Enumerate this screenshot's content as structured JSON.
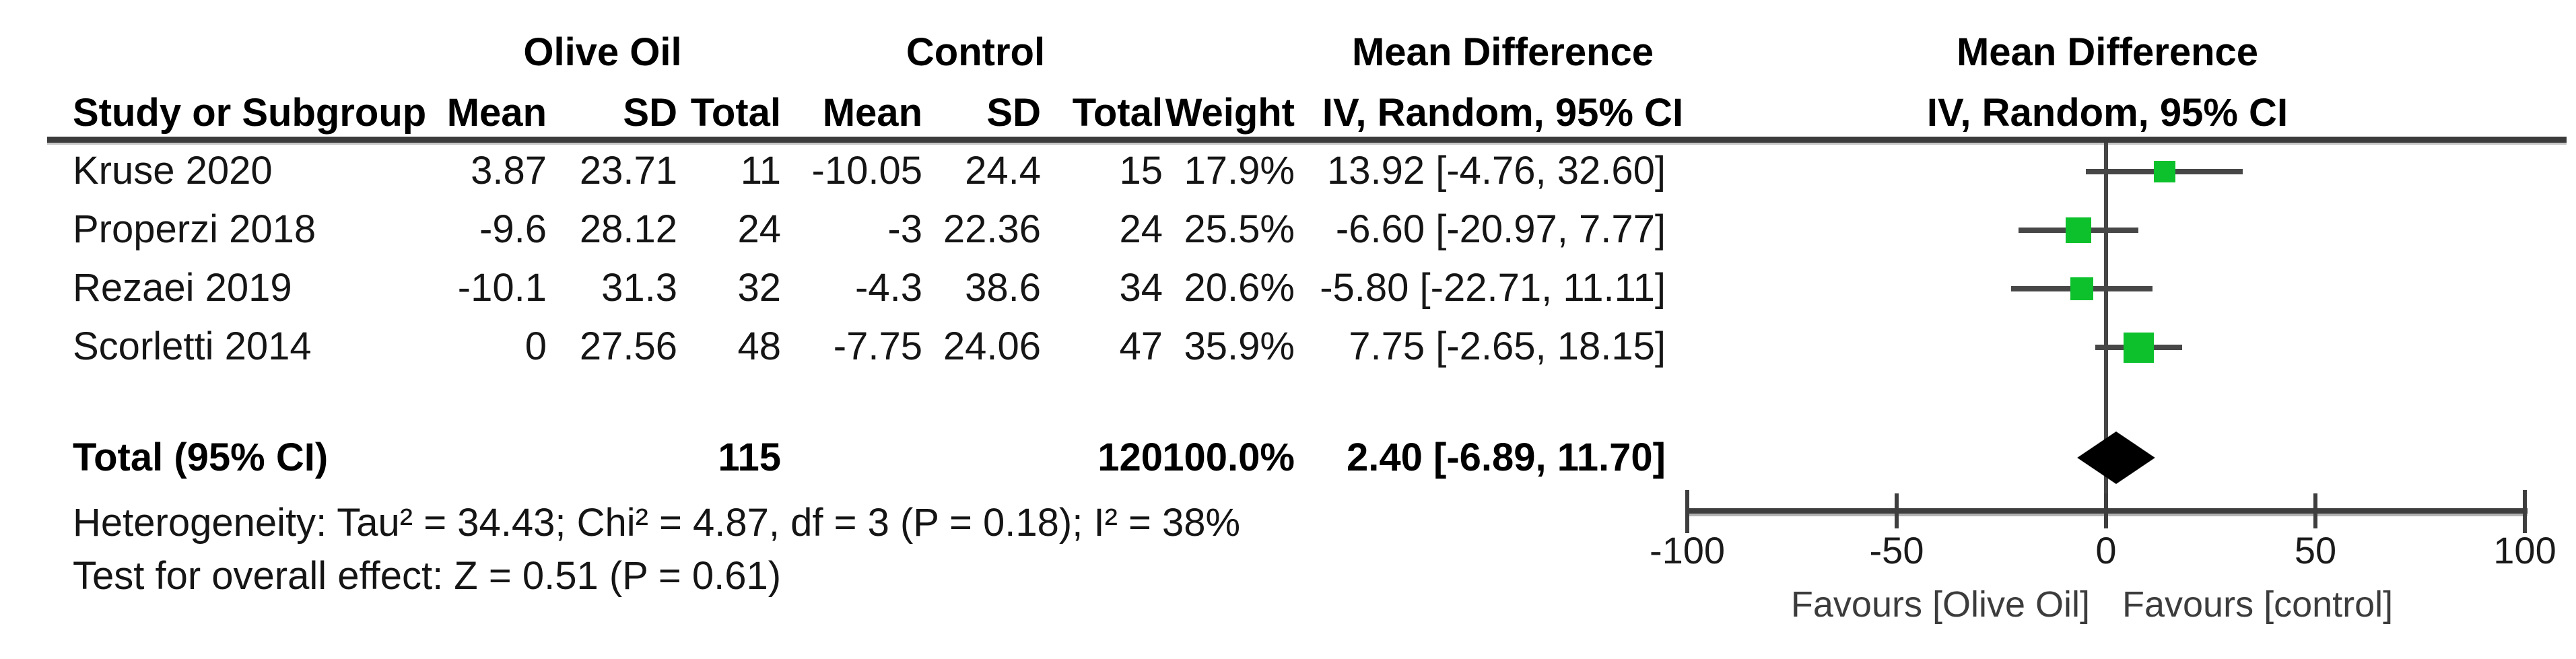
{
  "chart_data": {
    "type": "forest",
    "effect_measure": "Mean Difference",
    "method_label": "IV, Random, 95% CI",
    "groups": {
      "left": "Olive Oil",
      "right": "Control"
    },
    "headers": {
      "study": "Study or Subgroup",
      "mean": "Mean",
      "sd": "SD",
      "total": "Total",
      "weight": "Weight",
      "effect": "Mean Difference",
      "method": "IV, Random, 95% CI"
    },
    "studies": [
      {
        "name": "Kruse 2020",
        "oo_mean": "3.87",
        "oo_sd": "23.71",
        "oo_total": "11",
        "c_mean": "-10.05",
        "c_sd": "24.4",
        "c_total": "15",
        "weight": "17.9%",
        "ci_text": "13.92 [-4.76, 32.60]",
        "md": 13.92,
        "ci_low": -4.76,
        "ci_high": 32.6,
        "weight_pct": 17.9
      },
      {
        "name": "Properzi 2018",
        "oo_mean": "-9.6",
        "oo_sd": "28.12",
        "oo_total": "24",
        "c_mean": "-3",
        "c_sd": "22.36",
        "c_total": "24",
        "weight": "25.5%",
        "ci_text": "-6.60 [-20.97, 7.77]",
        "md": -6.6,
        "ci_low": -20.97,
        "ci_high": 7.77,
        "weight_pct": 25.5
      },
      {
        "name": "Rezaei 2019",
        "oo_mean": "-10.1",
        "oo_sd": "31.3",
        "oo_total": "32",
        "c_mean": "-4.3",
        "c_sd": "38.6",
        "c_total": "34",
        "weight": "20.6%",
        "ci_text": "-5.80 [-22.71, 11.11]",
        "md": -5.8,
        "ci_low": -22.71,
        "ci_high": 11.11,
        "weight_pct": 20.6
      },
      {
        "name": "Scorletti 2014",
        "oo_mean": "0",
        "oo_sd": "27.56",
        "oo_total": "48",
        "c_mean": "-7.75",
        "c_sd": "24.06",
        "c_total": "47",
        "weight": "35.9%",
        "ci_text": "7.75 [-2.65, 18.15]",
        "md": 7.75,
        "ci_low": -2.65,
        "ci_high": 18.15,
        "weight_pct": 35.9
      }
    ],
    "total": {
      "label": "Total (95% CI)",
      "oo_total": "115",
      "c_total": "120",
      "weight": "100.0%",
      "ci_text": "2.40 [-6.89, 11.70]",
      "md": 2.4,
      "ci_low": -6.89,
      "ci_high": 11.7
    },
    "heterogeneity": "Heterogeneity: Tau² = 34.43; Chi² = 4.87, df = 3 (P = 0.18); I² = 38%",
    "overall_effect": "Test for overall effect: Z = 0.51 (P = 0.61)",
    "axis": {
      "min": -100,
      "max": 100,
      "ticks": [
        -100,
        -50,
        0,
        50,
        100
      ]
    },
    "favours_left": "Favours [Olive Oil]",
    "favours_right": "Favours [control]",
    "colors": {
      "square": "#0cc12c",
      "ci_line": "#474747",
      "diamond": "#000000",
      "axis": "#3e3e3e"
    }
  }
}
